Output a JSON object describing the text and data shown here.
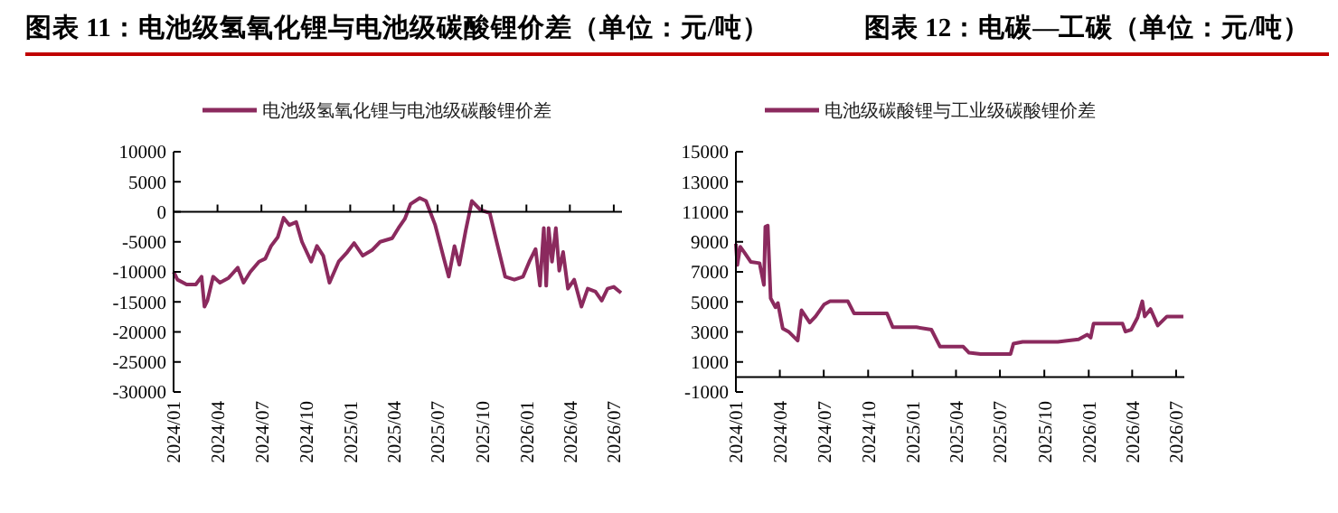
{
  "chart_data": [
    {
      "type": "line",
      "title": "图表 11：电池级氢氧化锂与电池级碳酸锂价差（单位：元/吨）",
      "legend": "top",
      "xlim": [
        "2024-01-01",
        "2026-07-18"
      ],
      "xticks": [
        {
          "value": "2024-01",
          "label": "2024/01"
        },
        {
          "value": "2024-04",
          "label": "2024/04"
        },
        {
          "value": "2024-07",
          "label": "2024/07"
        },
        {
          "value": "2024-10",
          "label": "2024/10"
        },
        {
          "value": "2025-01",
          "label": "2025/01"
        },
        {
          "value": "2025-04",
          "label": "2025/04"
        },
        {
          "value": "2025-07",
          "label": "2025/07"
        },
        {
          "value": "2025-10",
          "label": "2025/10"
        },
        {
          "value": "2026-01",
          "label": "2026/01"
        },
        {
          "value": "2026-04",
          "label": "2026/04"
        },
        {
          "value": "2026-07",
          "label": "2026/07"
        }
      ],
      "ylim": [
        -30000,
        10000
      ],
      "yticks": [
        -30000,
        -25000,
        -20000,
        -15000,
        -10000,
        -5000,
        0,
        5000,
        10000
      ],
      "x": [
        "2024-01-01",
        "2024-01-09",
        "2024-01-28",
        "2024-02-16",
        "2024-02-28",
        "2024-03-05",
        "2024-03-11",
        "2024-03-23",
        "2024-04-06",
        "2024-04-24",
        "2024-05-13",
        "2024-05-25",
        "2024-06-08",
        "2024-06-26",
        "2024-07-09",
        "2024-07-21",
        "2024-08-04",
        "2024-08-16",
        "2024-08-28",
        "2024-09-11",
        "2024-09-23",
        "2024-10-12",
        "2024-10-24",
        "2024-11-06",
        "2024-11-19",
        "2024-12-08",
        "2024-12-26",
        "2025-01-09",
        "2025-01-27",
        "2025-02-15",
        "2025-03-04",
        "2025-03-29",
        "2025-04-11",
        "2025-04-24",
        "2025-05-06",
        "2025-05-25",
        "2025-06-07",
        "2025-06-26",
        "2025-07-14",
        "2025-07-24",
        "2025-08-05",
        "2025-08-15",
        "2025-08-28",
        "2025-09-10",
        "2025-09-28",
        "2025-10-17",
        "2025-10-29",
        "2025-11-18",
        "2025-12-07",
        "2025-12-25",
        "2026-01-07",
        "2026-01-20",
        "2026-01-29",
        "2026-02-06",
        "2026-02-11",
        "2026-02-16",
        "2026-02-23",
        "2026-03-03",
        "2026-03-10",
        "2026-03-18",
        "2026-03-28",
        "2026-04-10",
        "2026-04-25",
        "2026-05-08",
        "2026-05-24",
        "2026-06-06",
        "2026-06-18",
        "2026-07-01",
        "2026-07-16"
      ],
      "series": [
        {
          "name": "电池级氢氧化锂与电池级碳酸锂价差",
          "color": "#8b2a5e",
          "values": [
            -10000,
            -11300,
            -12100,
            -12100,
            -10800,
            -15800,
            -14800,
            -10800,
            -11800,
            -11000,
            -9300,
            -11800,
            -10000,
            -8300,
            -7800,
            -5700,
            -4200,
            -1000,
            -2200,
            -1700,
            -5000,
            -8300,
            -5700,
            -7300,
            -11800,
            -8300,
            -6700,
            -5200,
            -7300,
            -6400,
            -5000,
            -4400,
            -2700,
            -1200,
            1300,
            2300,
            1800,
            -2200,
            -7800,
            -10800,
            -5700,
            -8800,
            -3200,
            1800,
            300,
            -200,
            -4200,
            -10800,
            -11300,
            -10800,
            -8300,
            -6200,
            -12300,
            -2700,
            -12300,
            -2700,
            -8300,
            -2700,
            -9800,
            -6700,
            -12800,
            -11300,
            -15800,
            -12800,
            -13300,
            -14800,
            -12800,
            -12500,
            -13500
          ]
        }
      ]
    },
    {
      "type": "line",
      "title": "图表 12：电碳—工碳（单位：元/吨）",
      "legend": "top",
      "xlim": [
        "2024-01-01",
        "2026-07-18"
      ],
      "xticks": [
        {
          "value": "2024-01",
          "label": "2024/01"
        },
        {
          "value": "2024-04",
          "label": "2024/04"
        },
        {
          "value": "2024-07",
          "label": "2024/07"
        },
        {
          "value": "2024-10",
          "label": "2024/10"
        },
        {
          "value": "2025-01",
          "label": "2025/01"
        },
        {
          "value": "2025-04",
          "label": "2025/04"
        },
        {
          "value": "2025-07",
          "label": "2025/07"
        },
        {
          "value": "2025-10",
          "label": "2025/10"
        },
        {
          "value": "2026-01",
          "label": "2026/01"
        },
        {
          "value": "2026-04",
          "label": "2026/04"
        },
        {
          "value": "2026-07",
          "label": "2026/07"
        }
      ],
      "ylim": [
        -1000,
        15000
      ],
      "yticks": [
        -1000,
        1000,
        3000,
        5000,
        7000,
        9000,
        11000,
        13000,
        15000
      ],
      "x": [
        "2024-01-01",
        "2024-01-04",
        "2024-01-10",
        "2024-01-19",
        "2024-02-01",
        "2024-02-19",
        "2024-02-28",
        "2024-03-02",
        "2024-03-07",
        "2024-03-13",
        "2024-03-23",
        "2024-03-28",
        "2024-04-07",
        "2024-04-19",
        "2024-05-08",
        "2024-05-16",
        "2024-06-02",
        "2024-06-14",
        "2024-07-02",
        "2024-07-14",
        "2024-08-20",
        "2024-09-02",
        "2024-11-09",
        "2024-11-21",
        "2025-01-09",
        "2025-02-09",
        "2025-02-27",
        "2025-04-16",
        "2025-04-28",
        "2025-05-22",
        "2025-07-23",
        "2025-07-29",
        "2025-08-17",
        "2025-10-29",
        "2025-11-17",
        "2025-12-11",
        "2025-12-29",
        "2026-01-05",
        "2026-01-11",
        "2026-03-12",
        "2026-03-18",
        "2026-03-30",
        "2026-04-12",
        "2026-04-22",
        "2026-04-27",
        "2026-05-09",
        "2026-05-24",
        "2026-06-12",
        "2026-07-16"
      ],
      "series": [
        {
          "name": "电池级碳酸锂与工业级碳酸锂价差",
          "color": "#8b2a5e",
          "values": [
            8870,
            7460,
            8670,
            8270,
            7660,
            7580,
            6130,
            10000,
            10080,
            5240,
            4640,
            4920,
            3230,
            3020,
            2420,
            4440,
            3630,
            4030,
            4840,
            5040,
            5040,
            4230,
            4230,
            3310,
            3310,
            3150,
            2020,
            2020,
            1610,
            1530,
            1530,
            2220,
            2340,
            2340,
            2420,
            2500,
            2820,
            2620,
            3550,
            3550,
            3020,
            3150,
            3950,
            5040,
            4030,
            4520,
            3430,
            4030,
            4030
          ]
        }
      ]
    }
  ]
}
